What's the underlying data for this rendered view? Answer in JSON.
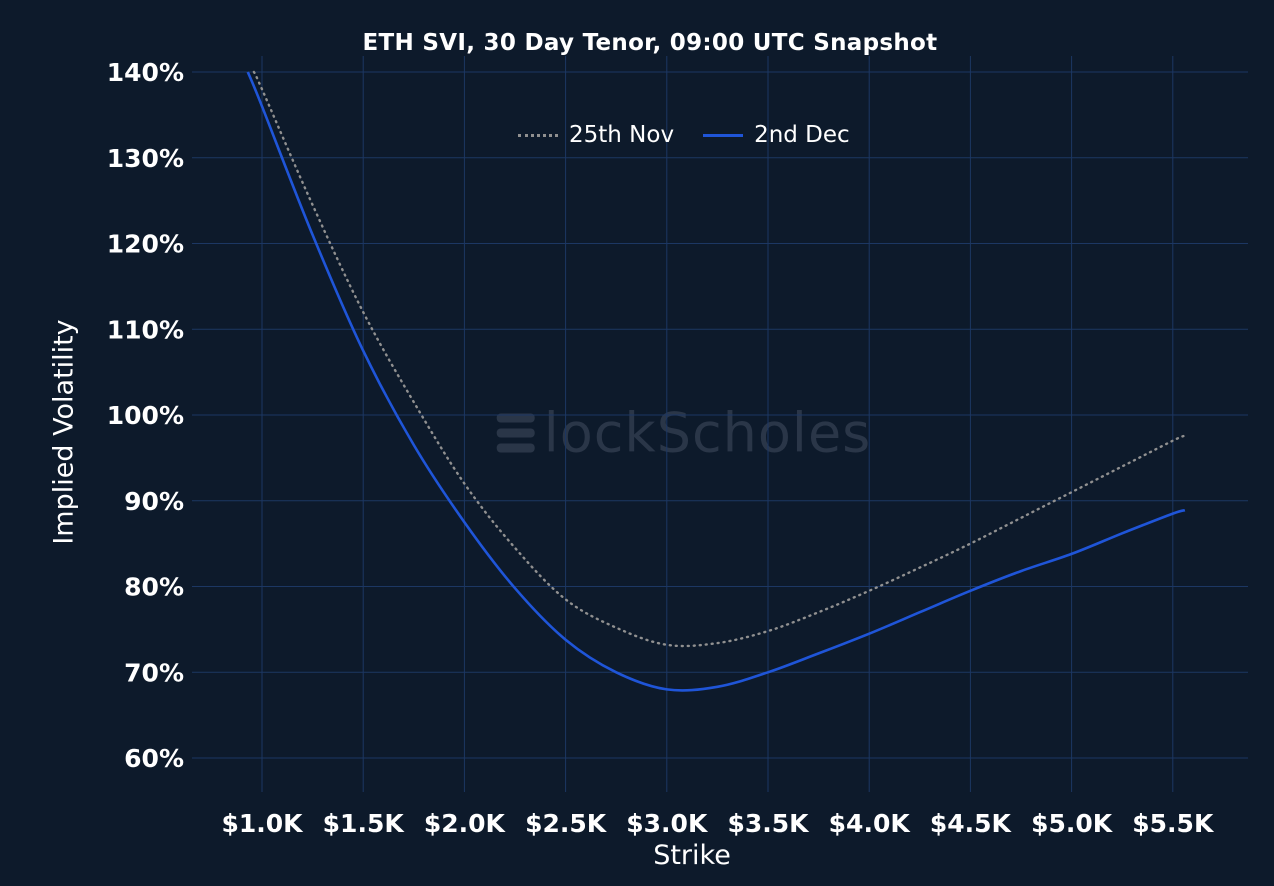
{
  "colors": {
    "background": "#0d1a2b",
    "grid": "#1c3763",
    "text": "#ffffff",
    "watermark": "#2a3648"
  },
  "chart_data": {
    "type": "line",
    "title": "ETH SVI, 30 Day Tenor, 09:00 UTC Snapshot",
    "xlabel": "Strike",
    "ylabel": "Implied Volatility",
    "grid": true,
    "legend_position": "top-center",
    "xlim": [
      0.9,
      5.6
    ],
    "ylim": [
      60,
      140
    ],
    "x_ticks": [
      1.0,
      1.5,
      2.0,
      2.5,
      3.0,
      3.5,
      4.0,
      4.5,
      5.0,
      5.5
    ],
    "x_tick_labels": [
      "$1.0K",
      "$1.5K",
      "$2.0K",
      "$2.5K",
      "$3.0K",
      "$3.5K",
      "$4.0K",
      "$4.5K",
      "$5.0K",
      "$5.5K"
    ],
    "y_ticks": [
      60,
      70,
      80,
      90,
      100,
      110,
      120,
      130,
      140
    ],
    "y_tick_labels": [
      "60%",
      "70%",
      "80%",
      "90%",
      "100%",
      "110%",
      "120%",
      "130%",
      "140%"
    ],
    "watermark": {
      "brand": "BlockScholes",
      "text_after_logo": "lockScholes"
    },
    "series": [
      {
        "name": "25th Nov",
        "style": "dotted",
        "color": "#909090",
        "x": [
          0.96,
          1.0,
          1.25,
          1.5,
          1.75,
          2.0,
          2.25,
          2.5,
          2.75,
          3.0,
          3.25,
          3.5,
          3.75,
          4.0,
          4.25,
          4.5,
          4.75,
          5.0,
          5.25,
          5.5,
          5.56
        ],
        "values": [
          140,
          138,
          124.5,
          112,
          101.5,
          92,
          84.5,
          78.5,
          75.2,
          73.2,
          73.4,
          74.8,
          77,
          79.5,
          82.2,
          85,
          88,
          91,
          94,
          97,
          97.6
        ]
      },
      {
        "name": "2nd Dec",
        "style": "solid",
        "color": "#1f55d8",
        "x": [
          0.93,
          1.0,
          1.25,
          1.5,
          1.75,
          2.0,
          2.25,
          2.5,
          2.75,
          3.0,
          3.25,
          3.5,
          3.75,
          4.0,
          4.25,
          4.5,
          4.75,
          5.0,
          5.25,
          5.5,
          5.56
        ],
        "values": [
          140,
          136,
          121,
          107.5,
          96.5,
          87.5,
          79.8,
          73.8,
          70,
          68,
          68.3,
          70,
          72.2,
          74.5,
          77,
          79.5,
          81.8,
          83.8,
          86.2,
          88.5,
          88.9
        ]
      }
    ]
  }
}
